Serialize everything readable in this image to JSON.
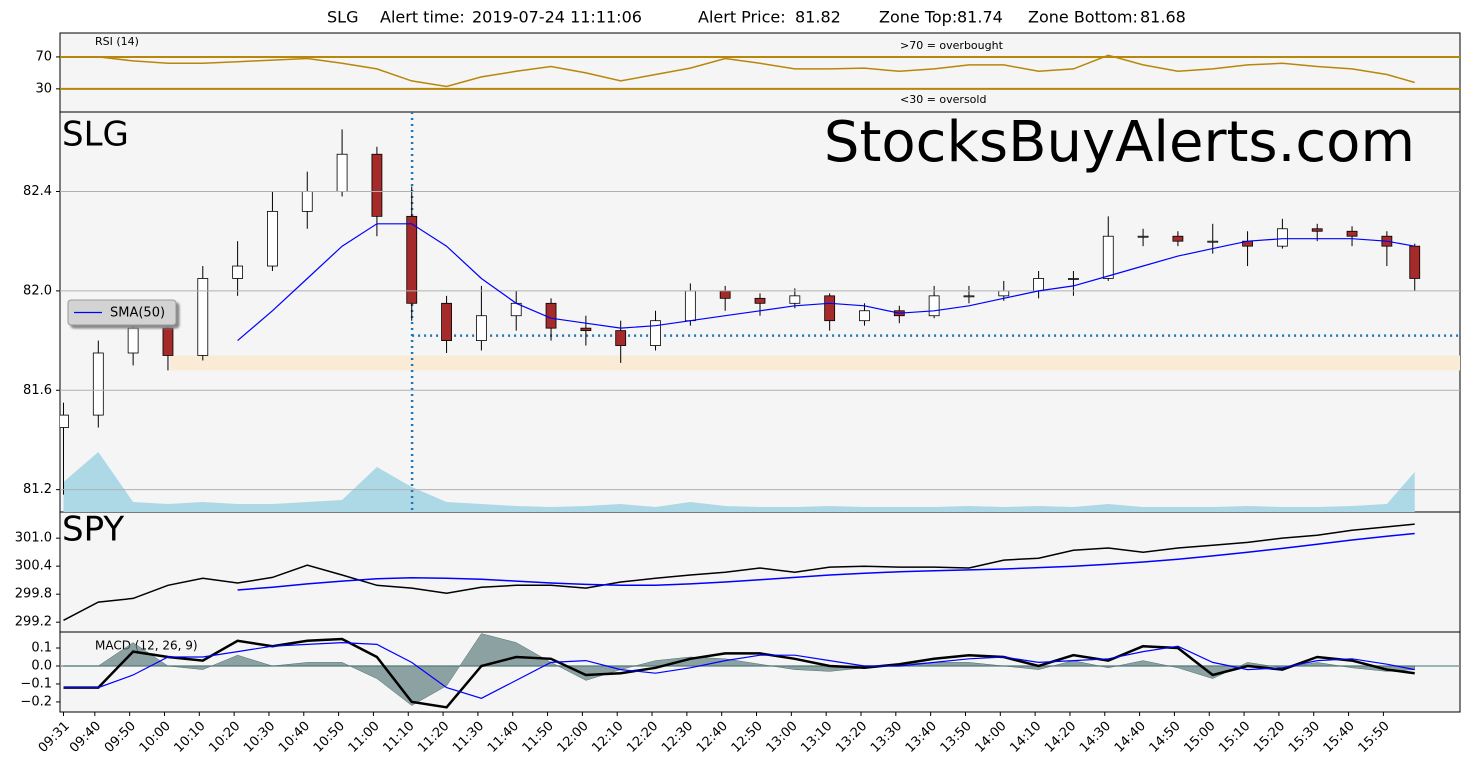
{
  "header": {
    "symbol": "SLG",
    "alert_time_label": "Alert time:",
    "alert_time": "2019-07-24 11:11:06",
    "alert_price_label": "Alert Price:",
    "alert_price": 81.82,
    "zone_top_label": "Zone Top:",
    "zone_top": 81.74,
    "zone_bottom_label": "Zone Bottom:",
    "zone_bottom": 81.68
  },
  "x": [
    571,
    581,
    591,
    601,
    611,
    621,
    631,
    641,
    651,
    661,
    671,
    681,
    691,
    701,
    711,
    721,
    731,
    741,
    751,
    761,
    771,
    781,
    791,
    801,
    811,
    821,
    831,
    841,
    851,
    861,
    871,
    881,
    891,
    901,
    911,
    921,
    931,
    941,
    951,
    959
  ],
  "xlim": [
    570,
    972
  ],
  "xticks": [
    {
      "value": 571,
      "label": "09:31"
    },
    {
      "value": 580,
      "label": "09:40"
    },
    {
      "value": 590,
      "label": "09:50"
    },
    {
      "value": 600,
      "label": "10:00"
    },
    {
      "value": 610,
      "label": "10:10"
    },
    {
      "value": 620,
      "label": "10:20"
    },
    {
      "value": 630,
      "label": "10:30"
    },
    {
      "value": 640,
      "label": "10:40"
    },
    {
      "value": 650,
      "label": "10:50"
    },
    {
      "value": 660,
      "label": "11:00"
    },
    {
      "value": 670,
      "label": "11:10"
    },
    {
      "value": 680,
      "label": "11:20"
    },
    {
      "value": 690,
      "label": "11:30"
    },
    {
      "value": 700,
      "label": "11:40"
    },
    {
      "value": 710,
      "label": "11:50"
    },
    {
      "value": 720,
      "label": "12:00"
    },
    {
      "value": 730,
      "label": "12:10"
    },
    {
      "value": 740,
      "label": "12:20"
    },
    {
      "value": 750,
      "label": "12:30"
    },
    {
      "value": 760,
      "label": "12:40"
    },
    {
      "value": 770,
      "label": "12:50"
    },
    {
      "value": 780,
      "label": "13:00"
    },
    {
      "value": 790,
      "label": "13:10"
    },
    {
      "value": 800,
      "label": "13:20"
    },
    {
      "value": 810,
      "label": "13:30"
    },
    {
      "value": 820,
      "label": "13:40"
    },
    {
      "value": 830,
      "label": "13:50"
    },
    {
      "value": 840,
      "label": "14:00"
    },
    {
      "value": 850,
      "label": "14:10"
    },
    {
      "value": 860,
      "label": "14:20"
    },
    {
      "value": 870,
      "label": "14:30"
    },
    {
      "value": 880,
      "label": "14:40"
    },
    {
      "value": 890,
      "label": "14:50"
    },
    {
      "value": 900,
      "label": "15:00"
    },
    {
      "value": 910,
      "label": "15:10"
    },
    {
      "value": 920,
      "label": "15:20"
    },
    {
      "value": 930,
      "label": "15:30"
    },
    {
      "value": 940,
      "label": "15:40"
    },
    {
      "value": 950,
      "label": "15:50"
    }
  ],
  "chart_data": [
    {
      "type": "line",
      "label": "RSI (14)",
      "ylim": [
        1,
        100
      ],
      "yticks": [
        70,
        30
      ],
      "grid": true,
      "grid_color": "#b8860b",
      "annotations": [
        ">70 = overbought",
        "<30 = oversold"
      ],
      "series": [
        {
          "color": "#b8860b",
          "values": [
            70,
            70,
            65,
            62,
            62,
            64,
            66,
            68,
            62,
            55,
            40,
            33,
            45,
            52,
            58,
            50,
            40,
            48,
            56,
            68,
            62,
            55,
            55,
            56,
            52,
            55,
            60,
            60,
            52,
            55,
            72,
            60,
            52,
            55,
            60,
            62,
            58,
            55,
            48,
            38
          ]
        }
      ]
    },
    {
      "type": "candlestick",
      "label": "SLG",
      "watermark": "StocksBuyAlerts.com",
      "ylim": [
        81.11,
        82.72
      ],
      "yticks": [
        81.2,
        81.6,
        {
          "value": 82,
          "label": "82.0"
        },
        82.4
      ],
      "grid": true,
      "grid_color": "#b0b0b0",
      "legend": "upper left",
      "up_color": "#ffffff",
      "down_color": "#a52a2a",
      "zone_color": "#faebd7",
      "open": [
        81.45,
        81.5,
        81.75,
        81.85,
        81.74,
        82.05,
        82.1,
        82.32,
        82.4,
        82.55,
        82.3,
        81.95,
        81.8,
        81.9,
        81.95,
        81.85,
        81.84,
        81.78,
        81.88,
        82.0,
        81.97,
        81.95,
        81.98,
        81.88,
        81.92,
        81.9,
        81.98,
        81.98,
        82.0,
        82.05,
        82.05,
        82.22,
        82.22,
        82.2,
        82.2,
        82.18,
        82.25,
        82.24,
        82.22,
        82.18
      ],
      "high": [
        81.55,
        81.8,
        81.92,
        81.88,
        82.1,
        82.2,
        82.4,
        82.48,
        82.65,
        82.58,
        82.42,
        81.98,
        82.02,
        82.0,
        81.97,
        81.9,
        81.88,
        81.92,
        82.03,
        82.02,
        81.99,
        82.01,
        81.99,
        81.95,
        81.94,
        82.02,
        82.02,
        82.04,
        82.08,
        82.08,
        82.3,
        82.25,
        82.24,
        82.27,
        82.24,
        82.29,
        82.27,
        82.26,
        82.24,
        82.19
      ],
      "low": [
        81.18,
        81.45,
        81.7,
        81.68,
        81.72,
        81.98,
        82.08,
        82.25,
        82.38,
        82.22,
        81.88,
        81.75,
        81.76,
        81.84,
        81.8,
        81.78,
        81.71,
        81.76,
        81.86,
        81.92,
        81.9,
        81.93,
        81.84,
        81.86,
        81.87,
        81.89,
        81.95,
        81.96,
        81.97,
        81.98,
        82.04,
        82.18,
        82.18,
        82.15,
        82.1,
        82.17,
        82.2,
        82.18,
        82.1,
        82.0
      ],
      "close": [
        81.5,
        81.75,
        81.85,
        81.74,
        82.05,
        82.1,
        82.32,
        82.4,
        82.55,
        82.3,
        81.95,
        81.8,
        81.9,
        81.95,
        81.85,
        81.84,
        81.78,
        81.88,
        82.0,
        81.97,
        81.95,
        81.98,
        81.88,
        81.92,
        81.9,
        81.98,
        81.98,
        82.0,
        82.05,
        82.05,
        82.22,
        82.22,
        82.2,
        82.2,
        82.18,
        82.25,
        82.24,
        82.22,
        82.18,
        82.05
      ],
      "series": [
        {
          "name": "SMA(50)",
          "color": "#0000ff",
          "values": [
            null,
            null,
            null,
            null,
            null,
            81.8,
            81.92,
            82.05,
            82.18,
            82.27,
            82.27,
            82.18,
            82.05,
            81.95,
            81.89,
            81.87,
            81.85,
            81.86,
            81.88,
            81.9,
            81.92,
            81.94,
            81.95,
            81.94,
            81.91,
            81.92,
            81.94,
            81.97,
            82.0,
            82.02,
            82.06,
            82.1,
            82.14,
            82.17,
            82.2,
            82.21,
            82.21,
            82.21,
            82.2,
            82.18
          ]
        }
      ],
      "volume": {
        "color": "#add8e6",
        "lim": [
          0,
          100
        ],
        "values": [
          30,
          60,
          10,
          8,
          10,
          8,
          8,
          10,
          12,
          45,
          25,
          10,
          8,
          6,
          5,
          6,
          8,
          5,
          10,
          6,
          5,
          5,
          6,
          5,
          5,
          5,
          6,
          5,
          6,
          5,
          8,
          5,
          5,
          5,
          6,
          5,
          5,
          6,
          8,
          40
        ]
      }
    },
    {
      "type": "line",
      "label": "SPY",
      "ylim": [
        298.99,
        301.56
      ],
      "yticks": [
        {
          "value": 301,
          "label": "301.0"
        },
        300.4,
        299.8,
        299.2
      ],
      "series": [
        {
          "color": "#000000",
          "values": [
            299.24,
            299.63,
            299.71,
            299.99,
            300.14,
            300.04,
            300.16,
            300.42,
            300.21,
            299.99,
            299.93,
            299.82,
            299.95,
            299.99,
            299.99,
            299.93,
            300.06,
            300.14,
            300.21,
            300.27,
            300.36,
            300.27,
            300.38,
            300.4,
            300.38,
            300.38,
            300.36,
            300.53,
            300.57,
            300.74,
            300.79,
            300.7,
            300.79,
            300.85,
            300.91,
            301.0,
            301.06,
            301.17,
            301.24,
            301.3
          ]
        },
        {
          "color": "#0000ff",
          "values": [
            null,
            null,
            null,
            null,
            null,
            299.89,
            299.95,
            300.02,
            300.08,
            300.13,
            300.15,
            300.14,
            300.12,
            300.08,
            300.04,
            300.01,
            299.99,
            299.99,
            300.02,
            300.06,
            300.11,
            300.16,
            300.21,
            300.25,
            300.28,
            300.3,
            300.32,
            300.34,
            300.37,
            300.4,
            300.44,
            300.49,
            300.55,
            300.62,
            300.7,
            300.78,
            300.87,
            300.96,
            301.04,
            301.1
          ]
        }
      ]
    },
    {
      "type": "macd",
      "label": "MACD (12, 26, 9)",
      "ylim": [
        -0.256,
        0.189
      ],
      "yticks": [
        0.1,
        {
          "value": 0,
          "label": "0.0"
        },
        {
          "value": -0.1,
          "label": "−0.1"
        },
        {
          "value": -0.2,
          "label": "−0.2"
        }
      ],
      "histogram": {
        "color": "#5f7f7f",
        "values": [
          0,
          0,
          0.13,
          0,
          -0.02,
          0.06,
          0,
          0.02,
          0.02,
          -0.07,
          -0.22,
          -0.11,
          0.18,
          0.13,
          0.02,
          -0.08,
          -0.02,
          0.03,
          0.05,
          0.04,
          0.01,
          -0.02,
          -0.03,
          -0.01,
          0.01,
          0.02,
          0.02,
          0,
          -0.02,
          0.03,
          -0.01,
          0.03,
          -0.01,
          -0.07,
          0.02,
          -0.01,
          0.02,
          -0.01,
          -0.03,
          -0.02
        ]
      },
      "series": [
        {
          "color": "#000000",
          "values": [
            -0.12,
            -0.12,
            0.08,
            0.05,
            0.03,
            0.14,
            0.11,
            0.14,
            0.15,
            0.05,
            -0.2,
            -0.23,
            0.0,
            0.05,
            0.04,
            -0.05,
            -0.04,
            -0.01,
            0.04,
            0.07,
            0.07,
            0.04,
            0.0,
            -0.01,
            0.01,
            0.04,
            0.06,
            0.05,
            0.0,
            0.06,
            0.03,
            0.11,
            0.1,
            -0.05,
            0.0,
            -0.02,
            0.05,
            0.03,
            -0.02,
            -0.04
          ]
        },
        {
          "color": "#0000ff",
          "values": [
            -0.12,
            -0.12,
            -0.05,
            0.05,
            0.05,
            0.08,
            0.11,
            0.12,
            0.13,
            0.12,
            0.02,
            -0.12,
            -0.18,
            -0.08,
            0.02,
            0.03,
            -0.02,
            -0.04,
            -0.01,
            0.03,
            0.06,
            0.06,
            0.03,
            0.0,
            0.0,
            0.02,
            0.04,
            0.05,
            0.02,
            0.03,
            0.04,
            0.08,
            0.11,
            0.02,
            -0.02,
            -0.01,
            0.03,
            0.04,
            0.01,
            -0.02
          ]
        }
      ]
    }
  ]
}
